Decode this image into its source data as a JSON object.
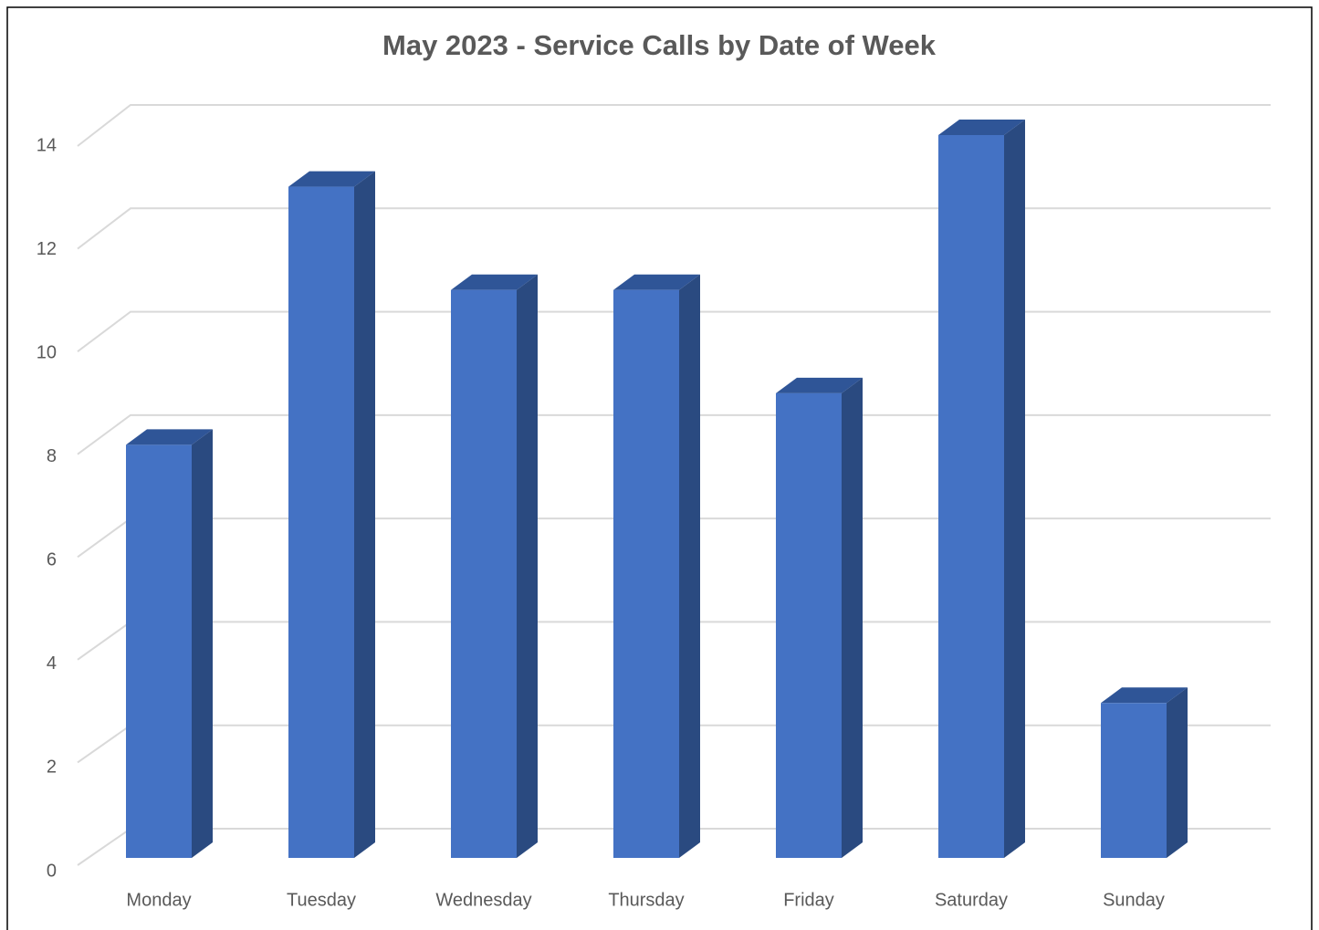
{
  "chart_data": {
    "type": "bar3d",
    "title": "May 2023 - Service Calls by Date of Week",
    "categories": [
      "Monday",
      "Tuesday",
      "Wednesday",
      "Thursday",
      "Friday",
      "Saturday",
      "Sunday"
    ],
    "values": [
      8,
      13,
      11,
      11,
      9,
      14,
      3
    ],
    "color": "#4472c4",
    "ylim": [
      0,
      14
    ],
    "yticks": [
      0,
      2,
      4,
      6,
      8,
      10,
      12,
      14
    ],
    "grid": true
  }
}
